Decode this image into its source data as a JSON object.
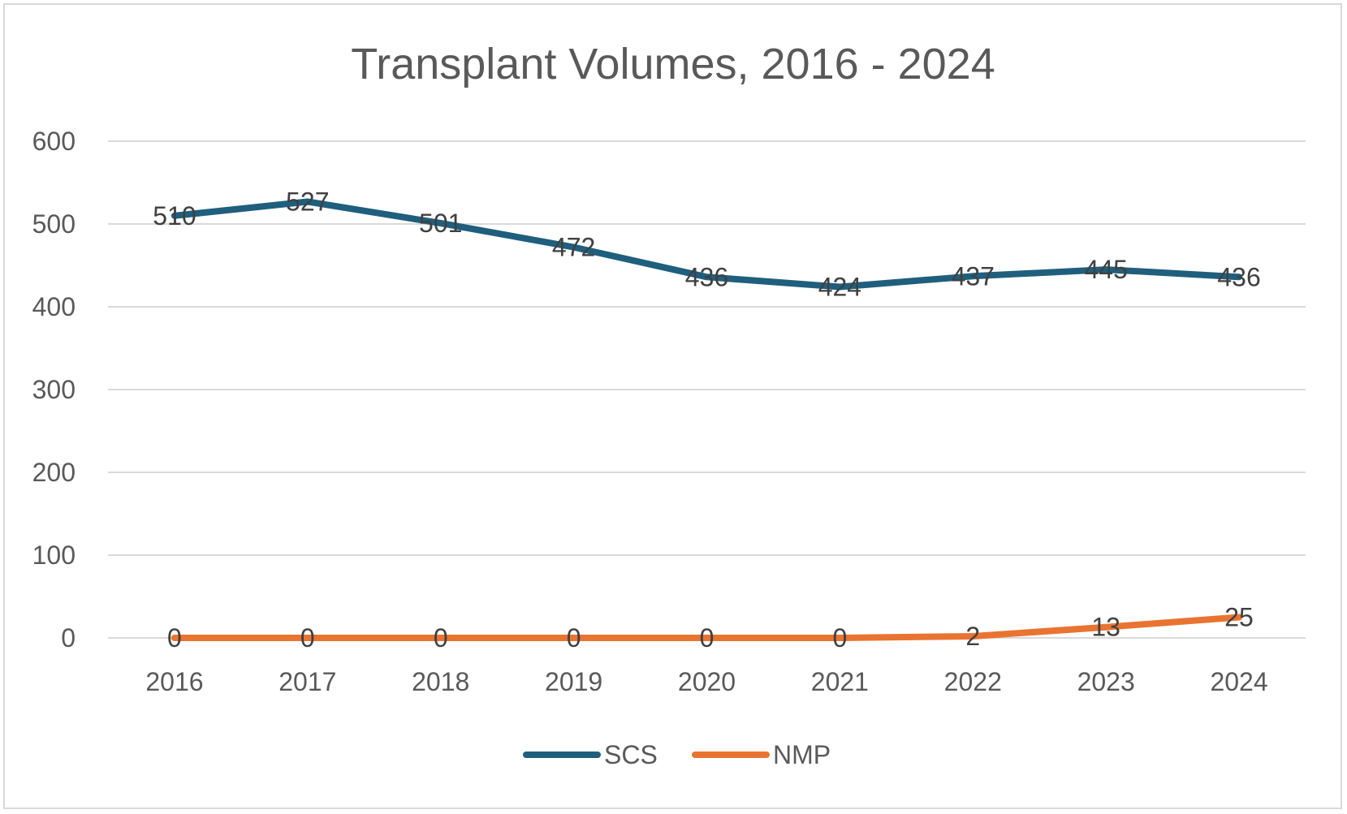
{
  "chart_data": {
    "type": "line",
    "title": "Transplant Volumes, 2016 - 2024",
    "xlabel": "",
    "ylabel": "",
    "categories": [
      "2016",
      "2017",
      "2018",
      "2019",
      "2020",
      "2021",
      "2022",
      "2023",
      "2024"
    ],
    "ylim": [
      0,
      600
    ],
    "yticks": [
      0,
      100,
      200,
      300,
      400,
      500,
      600
    ],
    "grid": true,
    "legend_position": "bottom",
    "series": [
      {
        "name": "SCS",
        "color": "#1f5f7d",
        "values": [
          510,
          527,
          501,
          472,
          436,
          424,
          437,
          445,
          436
        ]
      },
      {
        "name": "NMP",
        "color": "#e97431",
        "values": [
          0,
          0,
          0,
          0,
          0,
          0,
          2,
          13,
          25
        ]
      }
    ]
  }
}
